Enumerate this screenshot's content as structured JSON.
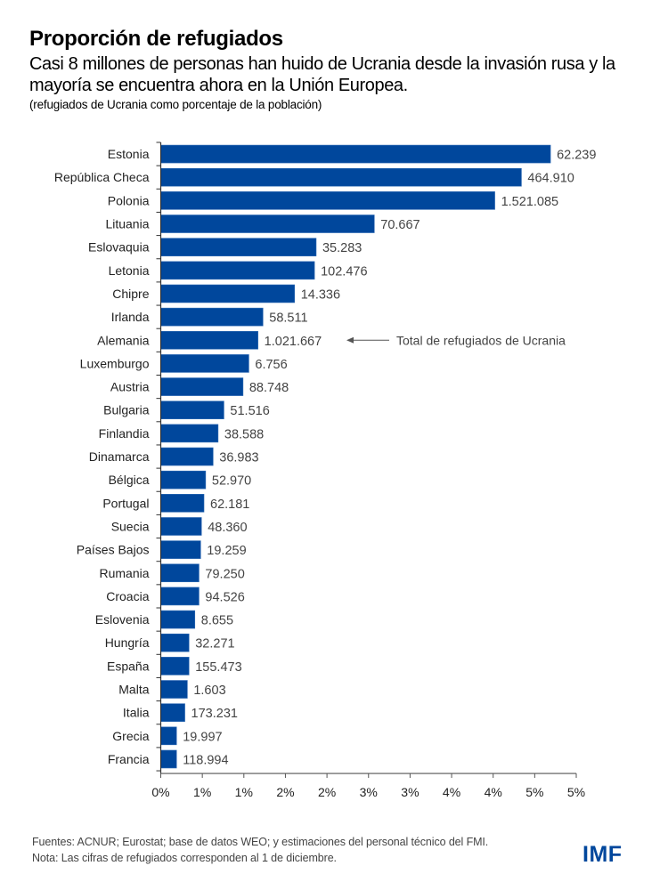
{
  "header": {
    "title": "Proporción de refugiados",
    "subtitle": "Casi 8 millones de personas han huido de Ucrania desde la invasión rusa y la mayoría se encuentra ahora en la Unión Europea.",
    "unit_note": "(refugiados de Ucrania como porcentaje de la población)"
  },
  "footer": {
    "sources": "Fuentes: ACNUR; Eurostat; base de datos WEO; y estimaciones del personal técnico del FMI.",
    "note": "Nota: Las cifras de refugiados corresponden al 1 de diciembre.",
    "logo": "IMF"
  },
  "colors": {
    "bar": "#00479c",
    "logo": "#00479c"
  },
  "chart_data": {
    "type": "bar",
    "orientation": "horizontal",
    "title": "Proporción de refugiados",
    "xlabel": "",
    "ylabel": "",
    "xlim": [
      0,
      5
    ],
    "x_ticks": [
      0,
      0.5,
      1,
      1.5,
      2,
      2.5,
      3,
      3.5,
      4,
      4.5,
      5
    ],
    "x_tick_labels": [
      "0%",
      "1%",
      "1%",
      "2%",
      "2%",
      "3%",
      "3%",
      "4%",
      "4%",
      "5%",
      "5%"
    ],
    "grid": false,
    "categories": [
      "Estonia",
      "República Checa",
      "Polonia",
      "Lituania",
      "Eslovaquia",
      "Letonia",
      "Chipre",
      "Irlanda",
      "Alemania",
      "Luxemburgo",
      "Austria",
      "Bulgaria",
      "Finlandia",
      "Dinamarca",
      "Bélgica",
      "Portugal",
      "Suecia",
      "Países Bajos",
      "Rumania",
      "Croacia",
      "Eslovenia",
      "Hungría",
      "España",
      "Malta",
      "Italia",
      "Grecia",
      "Francia"
    ],
    "values": [
      4.69,
      4.34,
      4.02,
      2.57,
      1.87,
      1.85,
      1.61,
      1.23,
      1.17,
      1.06,
      0.99,
      0.76,
      0.69,
      0.63,
      0.54,
      0.52,
      0.49,
      0.48,
      0.46,
      0.46,
      0.41,
      0.34,
      0.34,
      0.32,
      0.29,
      0.19,
      0.19
    ],
    "data_labels": [
      "62.239",
      "464.910",
      "1.521.085",
      "70.667",
      "35.283",
      "102.476",
      "14.336",
      "58.511",
      "1.021.667",
      "6.756",
      "88.748",
      "51.516",
      "38.588",
      "36.983",
      "52.970",
      "62.181",
      "48.360",
      "19.259",
      "79.250",
      "94.526",
      "8.655",
      "32.271",
      "155.473",
      "1.603",
      "173.231",
      "19.997",
      "118.994"
    ],
    "annotations": [
      {
        "text": "Total de refugiados de Ucrania",
        "target_category": "Alemania",
        "arrow": "left"
      }
    ]
  }
}
